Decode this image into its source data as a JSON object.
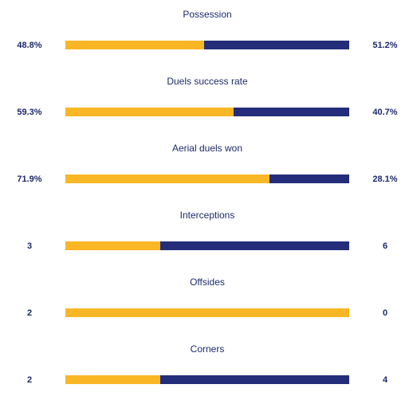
{
  "colors": {
    "home": "#f9b625",
    "away": "#242d7a",
    "text": "#1d2a6b"
  },
  "stats": [
    {
      "title": "Possession",
      "left": "48.8%",
      "right": "51.2%",
      "home_share": 0.488
    },
    {
      "title": "Duels success rate",
      "left": "59.3%",
      "right": "40.7%",
      "home_share": 0.593
    },
    {
      "title": "Aerial duels won",
      "left": "71.9%",
      "right": "28.1%",
      "home_share": 0.719
    },
    {
      "title": "Interceptions",
      "left": "3",
      "right": "6",
      "home_share": 0.333
    },
    {
      "title": "Offsides",
      "left": "2",
      "right": "0",
      "home_share": 1.0
    },
    {
      "title": "Corners",
      "left": "2",
      "right": "4",
      "home_share": 0.333
    }
  ]
}
